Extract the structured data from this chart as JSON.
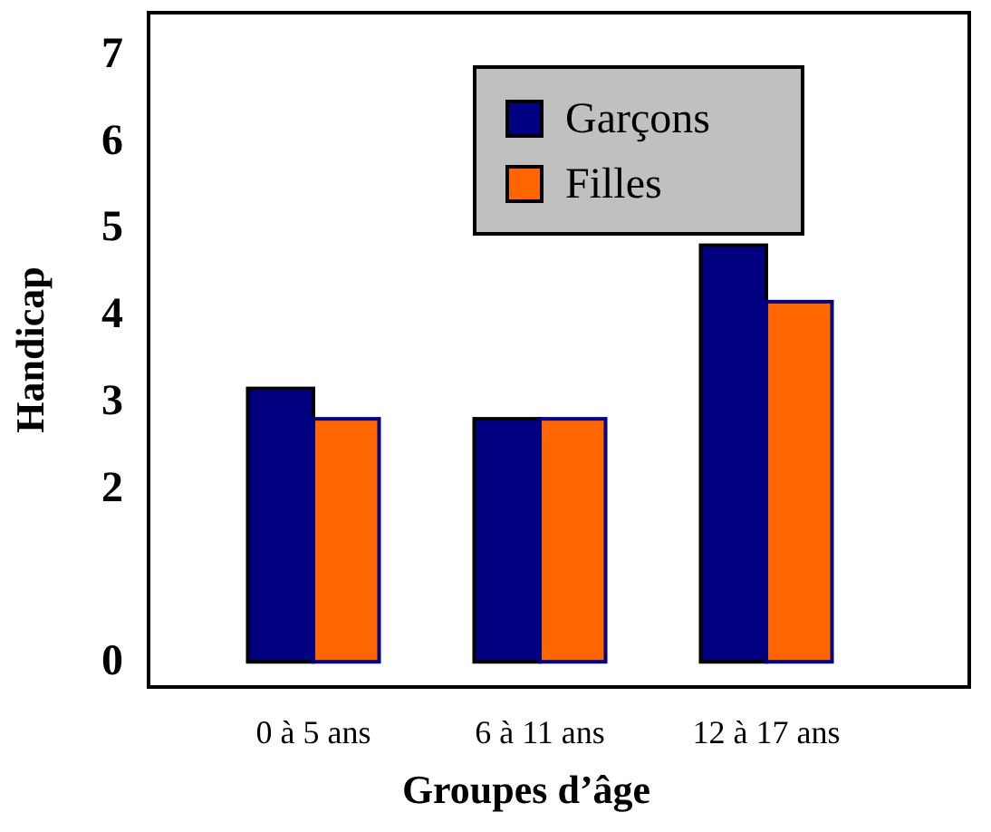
{
  "chart_data": {
    "type": "bar",
    "xlabel": "Groupes d’âge",
    "ylabel": "Handicap",
    "categories": [
      "0 à 5 ans",
      "6 à 11 ans",
      "12 à 17 ans"
    ],
    "series": [
      {
        "name": "Garçons",
        "color": "#000080",
        "values": [
          3.15,
          2.8,
          4.8
        ]
      },
      {
        "name": "Filles",
        "color": "#ff6600",
        "values": [
          2.8,
          2.8,
          4.15
        ]
      }
    ],
    "ylim": [
      -0.29,
      7.48
    ],
    "yticks": [
      0,
      2,
      3,
      4,
      5,
      6,
      7
    ],
    "grid": false,
    "legend": "top"
  }
}
